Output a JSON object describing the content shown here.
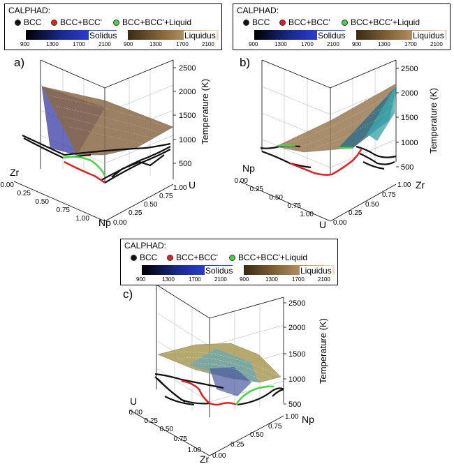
{
  "legend": {
    "title": "CALPHAD:",
    "items": [
      {
        "label": "BCC",
        "color": "#111111"
      },
      {
        "label": "BCC+BCC'",
        "color": "#e02020"
      },
      {
        "label": "BCC+BCC'+Liquid",
        "color": "#44d544"
      }
    ],
    "solidus_label": "Solidus",
    "liquidus_label": "Liquidus",
    "ticks": [
      "900",
      "1300",
      "1700",
      "2100"
    ],
    "solidus_colors": [
      "#000000",
      "#1a2a8a",
      "#2f3fdd",
      "#2b4bff"
    ],
    "liquidus_colors": [
      "#3a2a14",
      "#8b6a3e",
      "#c8a27a",
      "#f0e0d0"
    ]
  },
  "panels": [
    {
      "label": "a)",
      "z_label": "Temperature (K)",
      "z_ticks": [
        "2500",
        "2000",
        "1500",
        "1000",
        "500"
      ],
      "corner_top": "Zr",
      "corner_right": "U",
      "corner_bottom": "Np",
      "left_ticks": [
        "0.00",
        "0.25",
        "0.50",
        "0.75",
        "1.00"
      ],
      "right_ticks": [
        "1.00",
        "0.75",
        "0.50",
        "0.25",
        "0.00"
      ]
    },
    {
      "label": "b)",
      "z_label": "Temperature (K)",
      "z_ticks": [
        "2500",
        "2000",
        "1500",
        "1000",
        "500"
      ],
      "corner_top": "Np",
      "corner_right": "Zr",
      "corner_bottom": "U",
      "left_ticks": [
        "0.00",
        "0.25",
        "0.50",
        "0.75",
        "1.00"
      ],
      "right_ticks": [
        "1.00",
        "0.75",
        "0.50",
        "0.25",
        "0.00"
      ]
    },
    {
      "label": "c)",
      "z_label": "Temperature (K)",
      "z_ticks": [
        "2500",
        "2000",
        "1500",
        "1000",
        "500"
      ],
      "corner_top": "U",
      "corner_right": "Np",
      "corner_bottom": "Zr",
      "left_ticks": [
        "0.00",
        "0.25",
        "0.50",
        "0.75",
        "1.00"
      ],
      "right_ticks": [
        "1.00",
        "0.75",
        "0.50",
        "0.25",
        "0.00"
      ]
    }
  ]
}
